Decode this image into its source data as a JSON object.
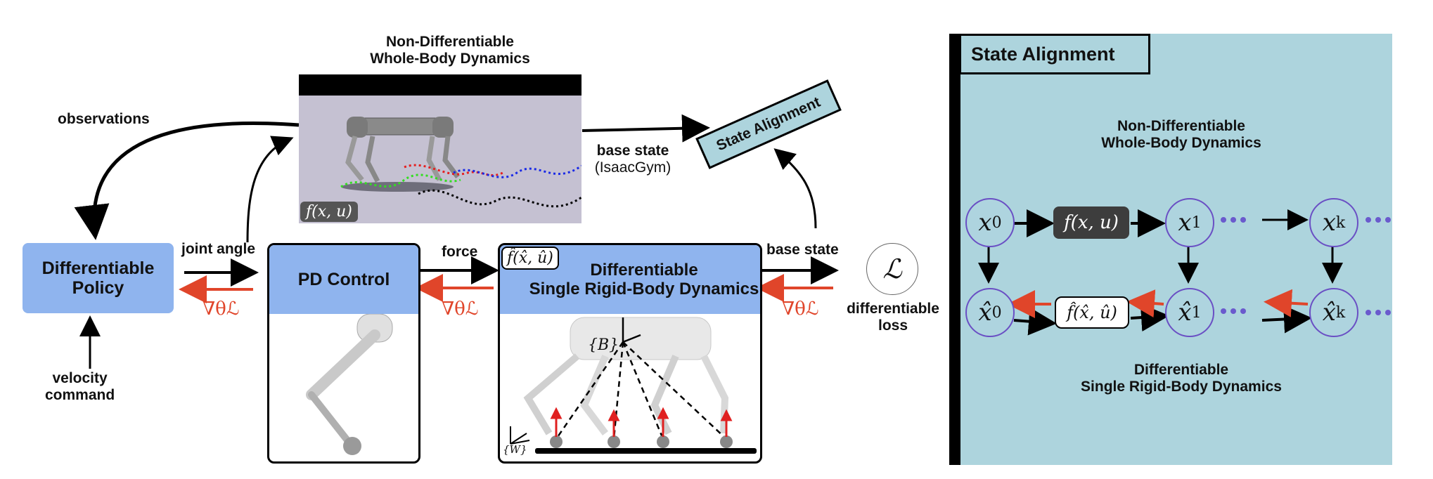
{
  "labels": {
    "top_title_line1": "Non-Differentiable",
    "top_title_line2": "Whole-Body Dynamics",
    "observations": "observations",
    "joint_angle": "joint angle",
    "force": "force",
    "base_state_top": "base state",
    "isaacgym": "(IsaacGym)",
    "base_state_right": "base state",
    "velocity_command_line1": "velocity",
    "velocity_command_line2": "command",
    "diff_loss_line1": "differentiable",
    "diff_loss_line2": "loss",
    "sim_caption": "f(x, u)",
    "loss_symbol": "ℒ",
    "grad_symbol": "∇θℒ",
    "body_frame": "{B}",
    "world_frame": "{W}"
  },
  "boxes": {
    "policy_line1": "Differentiable",
    "policy_line2": "Policy",
    "pd_control": "PD Control",
    "srb_line1": "Differentiable",
    "srb_line2": "Single Rigid-Body Dynamics",
    "srb_fn": "f̂(x̂, û)",
    "state_alignment_tag": "State Alignment"
  },
  "right_panel": {
    "title": "State Alignment",
    "top_line1": "Non-Differentiable",
    "top_line2": "Whole-Body Dynamics",
    "bottom_line1": "Differentiable",
    "bottom_line2": "Single Rigid-Body Dynamics",
    "f_box": "f(x, u)",
    "fhat_box": "f̂(x̂, û)",
    "nodes_top": [
      {
        "sym": "x",
        "sub": "0"
      },
      {
        "sym": "x",
        "sub": "1"
      },
      {
        "sym": "x",
        "sub": "k"
      }
    ],
    "nodes_bottom": [
      {
        "sym": "x̂",
        "sub": "0"
      },
      {
        "sym": "x̂",
        "sub": "1"
      },
      {
        "sym": "x̂",
        "sub": "k"
      }
    ]
  },
  "colors": {
    "policy_blue": "#8fb4ee",
    "panel_bg": "#add4dd",
    "gradient_red": "#e0452a",
    "node_border": "#6a4fc4",
    "dots": "#6a5acd"
  }
}
